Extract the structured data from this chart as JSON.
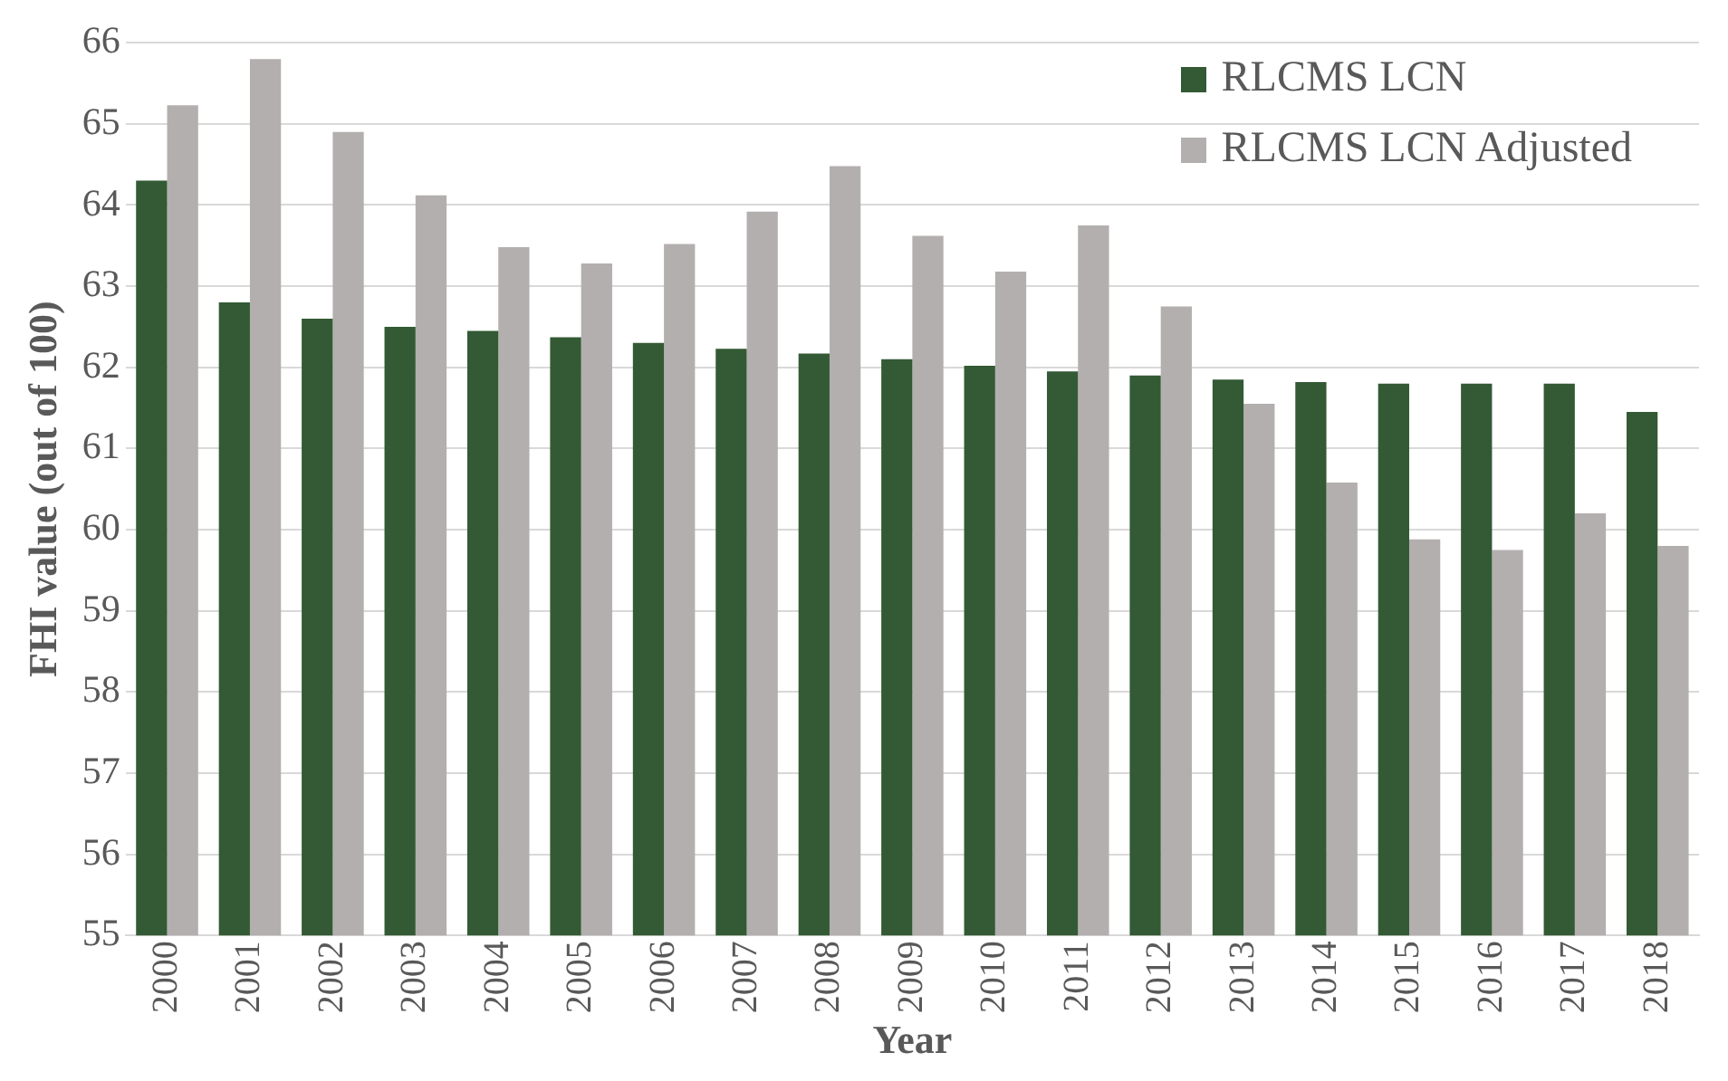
{
  "chart_data": {
    "type": "bar",
    "xlabel": "Year",
    "ylabel": "FHI value (out of 100)",
    "categories": [
      "2000",
      "2001",
      "2002",
      "2003",
      "2004",
      "2005",
      "2006",
      "2007",
      "2008",
      "2009",
      "2010",
      "2011",
      "2012",
      "2013",
      "2014",
      "2015",
      "2016",
      "2017",
      "2018"
    ],
    "series": [
      {
        "name": "RLCMS LCN",
        "color": "#335a34",
        "values": [
          64.3,
          62.8,
          62.6,
          62.5,
          62.45,
          62.37,
          62.3,
          62.23,
          62.17,
          62.1,
          62.02,
          61.95,
          61.9,
          61.85,
          61.82,
          61.8,
          61.8,
          61.8,
          61.45
        ]
      },
      {
        "name": "RLCMS LCN Adjusted",
        "color": "#b3afae",
        "values": [
          65.23,
          65.8,
          64.9,
          64.12,
          63.48,
          63.28,
          63.52,
          63.92,
          64.48,
          63.62,
          63.18,
          63.75,
          62.75,
          61.55,
          60.58,
          59.88,
          59.75,
          60.2,
          59.8
        ]
      }
    ],
    "ylim": [
      55,
      66
    ],
    "yticks": [
      55,
      56,
      57,
      58,
      59,
      60,
      61,
      62,
      63,
      64,
      65,
      66
    ],
    "grid": "y",
    "legend": "top right"
  }
}
